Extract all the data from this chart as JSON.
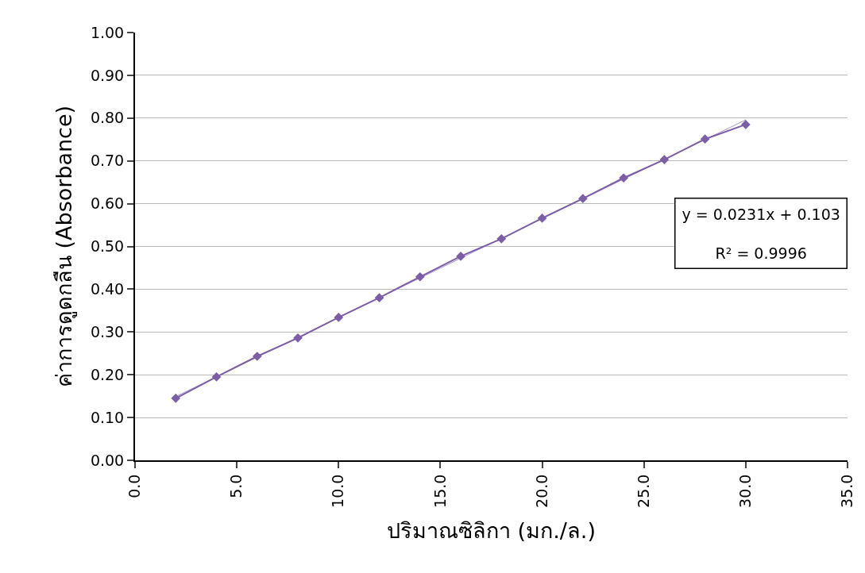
{
  "chart_data": {
    "type": "line",
    "xlabel": "ปริมาณซิลิกา (มก./ล.)",
    "ylabel": "ค่าการดูดกลืน (Absorbance)",
    "x": [
      2,
      4,
      6,
      8,
      10,
      12,
      14,
      16,
      18,
      20,
      22,
      24,
      26,
      28,
      30
    ],
    "series": [
      {
        "color": "#7b5ea7",
        "marker": "diamond",
        "values": [
          0.145,
          0.195,
          0.243,
          0.286,
          0.334,
          0.38,
          0.429,
          0.477,
          0.518,
          0.566,
          0.612,
          0.66,
          0.703,
          0.751,
          0.785
        ]
      },
      {
        "type": "line",
        "color": "#a897c9",
        "marker": "none",
        "x": [
          2,
          30
        ],
        "values": [
          0.149,
          0.796
        ]
      }
    ],
    "xlim": [
      0,
      35
    ],
    "xticks": [
      {
        "value": 0,
        "label": "0.0"
      },
      {
        "value": 5,
        "label": "5.0"
      },
      {
        "value": 10,
        "label": "10.0"
      },
      {
        "value": 15,
        "label": "15.0"
      },
      {
        "value": 20,
        "label": "20.0"
      },
      {
        "value": 25,
        "label": "25.0"
      },
      {
        "value": 30,
        "label": "30.0"
      },
      {
        "value": 35,
        "label": "35.0"
      }
    ],
    "ylim": [
      0,
      1
    ],
    "yticks": [
      {
        "value": 0,
        "label": "0.00"
      },
      {
        "value": 0.1,
        "label": "0.10"
      },
      {
        "value": 0.2,
        "label": "0.20"
      },
      {
        "value": 0.3,
        "label": "0.30"
      },
      {
        "value": 0.4,
        "label": "0.40"
      },
      {
        "value": 0.5,
        "label": "0.50"
      },
      {
        "value": 0.6,
        "label": "0.60"
      },
      {
        "value": 0.7,
        "label": "0.70"
      },
      {
        "value": 0.8,
        "label": "0.80"
      },
      {
        "value": 0.9,
        "label": "0.90"
      },
      {
        "value": 1,
        "label": "1.00"
      }
    ],
    "grid": "y",
    "annotations": [
      "y = 0.0231x + 0.103",
      "R² = 0.9996"
    ]
  }
}
